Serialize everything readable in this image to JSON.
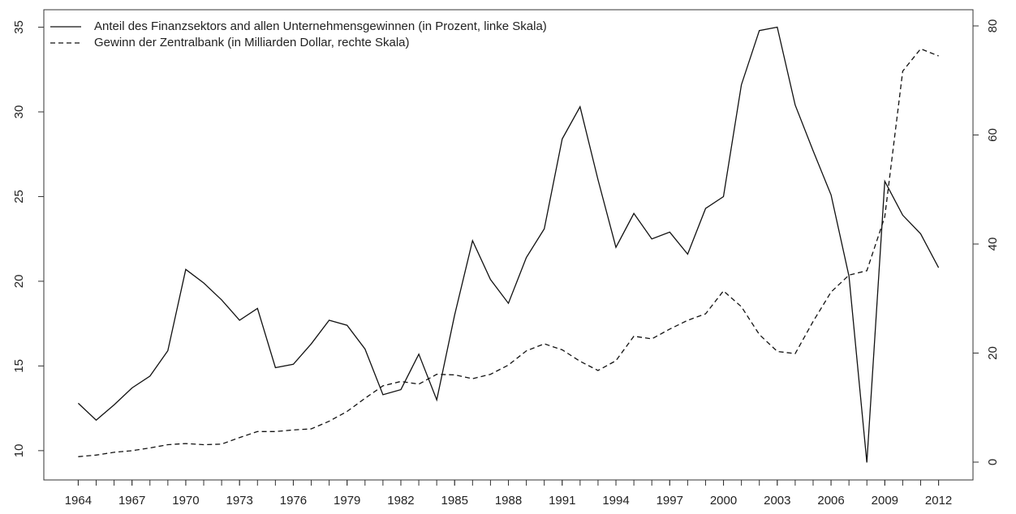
{
  "chart_data": {
    "type": "line",
    "x": [
      1964,
      1965,
      1966,
      1967,
      1968,
      1969,
      1970,
      1971,
      1972,
      1973,
      1974,
      1975,
      1976,
      1977,
      1978,
      1979,
      1980,
      1981,
      1982,
      1983,
      1984,
      1985,
      1986,
      1987,
      1988,
      1989,
      1990,
      1991,
      1992,
      1993,
      1994,
      1995,
      1996,
      1997,
      1998,
      1999,
      2000,
      2001,
      2002,
      2003,
      2004,
      2005,
      2006,
      2007,
      2008,
      2009,
      2010,
      2011,
      2012
    ],
    "series": [
      {
        "name": "Anteil des Finanzsektors and allen Unternehmensgewinnen (in Prozent, linke Skala)",
        "color": "#111111",
        "dash": "solid",
        "values": [
          12.8,
          11.8,
          12.7,
          13.7,
          14.4,
          15.9,
          20.7,
          19.9,
          18.9,
          17.7,
          18.4,
          14.9,
          15.1,
          16.3,
          17.7,
          17.4,
          16.0,
          13.3,
          13.6,
          15.7,
          13.0,
          18.0,
          22.4,
          20.1,
          18.7,
          21.4,
          23.1,
          28.4,
          30.3,
          26.0,
          22.0,
          24.0,
          22.5,
          22.9,
          21.6,
          24.3,
          25.0,
          31.6,
          34.8,
          35.0,
          30.4,
          27.7,
          25.1,
          20.3,
          9.3,
          25.9,
          23.9,
          22.8,
          20.8
        ]
      },
      {
        "name": "Gewinn der Zentralbank (in Milliarden Dollar, rechte Skala)",
        "color": "#111111",
        "dash": "dashed",
        "axis": "y2",
        "values": [
          1.0,
          1.3,
          1.8,
          2.1,
          2.6,
          3.2,
          3.4,
          3.2,
          3.3,
          4.5,
          5.6,
          5.6,
          5.9,
          6.1,
          7.5,
          9.3,
          11.7,
          14.0,
          14.8,
          14.3,
          16.1,
          16.0,
          15.3,
          16.1,
          17.8,
          20.4,
          21.7,
          20.6,
          18.5,
          16.8,
          18.6,
          23.1,
          22.6,
          24.4,
          26.0,
          27.2,
          31.4,
          28.5,
          23.4,
          20.3,
          19.9,
          25.8,
          31.2,
          34.3,
          35.1,
          45.0,
          71.7,
          75.8,
          74.5
        ]
      }
    ],
    "xlim": [
      1962.08,
      2013.92
    ],
    "xticks": [
      1964,
      1967,
      1970,
      1973,
      1976,
      1979,
      1982,
      1985,
      1988,
      1991,
      1994,
      1997,
      2000,
      2003,
      2006,
      2009,
      2012
    ],
    "ylim": [
      8.27,
      36.03
    ],
    "yticks": [
      10,
      15,
      20,
      25,
      30,
      35
    ],
    "y2lim": [
      -3.27,
      82.97
    ],
    "y2ticks": [
      0,
      20,
      40,
      60,
      80
    ],
    "legend": "top-left"
  }
}
